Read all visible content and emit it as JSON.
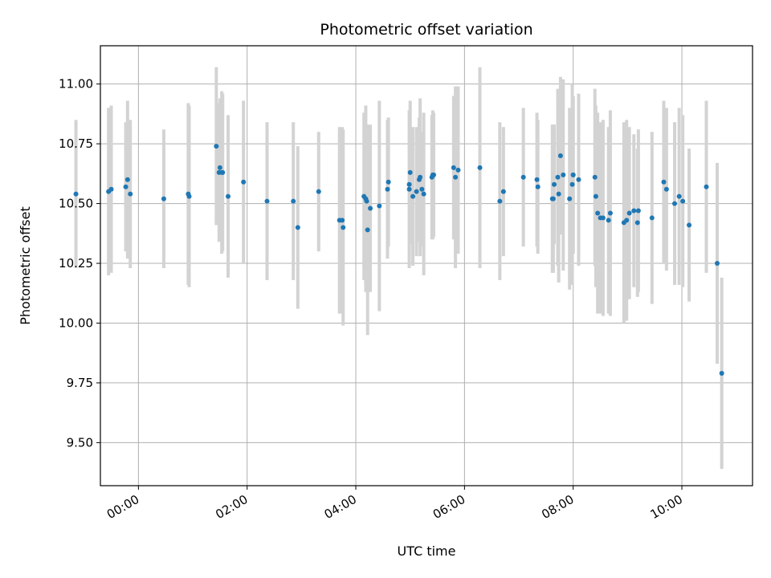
{
  "chart_data": {
    "type": "scatter",
    "title": "Photometric offset variation",
    "xlabel": "UTC time",
    "ylabel": "Photometric offset",
    "x_is_time": true,
    "xlim": [
      "-00:42",
      "11:18"
    ],
    "ylim": [
      9.32,
      11.16
    ],
    "xticks": [
      "00:00",
      "02:00",
      "04:00",
      "06:00",
      "08:00",
      "10:00"
    ],
    "yticks": [
      "9.50",
      "9.75",
      "10.00",
      "10.25",
      "10.50",
      "10.75",
      "11.00"
    ],
    "grid": true,
    "colors": {
      "points": "#1f77b4",
      "error_bars": "#d3d3d3"
    },
    "series": [
      {
        "x": [
          "-01:09",
          "-00:33",
          "-00:30",
          "-00:14",
          "-00:12",
          "-00:09",
          "00:28",
          "00:55",
          "00:56",
          "01:26",
          "01:29",
          "01:30",
          "01:32",
          "01:33",
          "01:39",
          "01:56",
          "02:22",
          "02:51",
          "02:56",
          "03:19",
          "03:42",
          "03:45",
          "03:46",
          "04:09",
          "04:11",
          "04:12",
          "04:13",
          "04:16",
          "04:26",
          "04:35",
          "04:36",
          "04:59",
          "04:59",
          "05:00",
          "05:03",
          "05:07",
          "05:10",
          "05:11",
          "05:13",
          "05:15",
          "05:24",
          "05:25",
          "05:26",
          "05:48",
          "05:50",
          "05:53",
          "06:17",
          "06:39",
          "06:43",
          "07:05",
          "07:20",
          "07:21",
          "07:37",
          "07:38",
          "07:39",
          "07:43",
          "07:44",
          "07:46",
          "07:49",
          "07:56",
          "07:59",
          "08:00",
          "08:00",
          "08:06",
          "08:24",
          "08:25",
          "08:27",
          "08:30",
          "08:33",
          "08:39",
          "08:41",
          "08:56",
          "08:59",
          "09:02",
          "09:07",
          "09:11",
          "09:12",
          "09:27",
          "09:40",
          "09:43",
          "09:52",
          "09:57",
          "10:01",
          "10:08",
          "10:27",
          "10:39",
          "10:44"
        ],
        "y": [
          10.54,
          10.55,
          10.56,
          10.57,
          10.6,
          10.54,
          10.52,
          10.54,
          10.53,
          10.74,
          10.63,
          10.65,
          10.63,
          10.63,
          10.53,
          10.59,
          10.51,
          10.51,
          10.4,
          10.55,
          10.43,
          10.43,
          10.4,
          10.53,
          10.52,
          10.51,
          10.39,
          10.48,
          10.49,
          10.56,
          10.59,
          10.58,
          10.56,
          10.63,
          10.53,
          10.55,
          10.6,
          10.61,
          10.56,
          10.54,
          10.61,
          10.62,
          10.62,
          10.65,
          10.61,
          10.64,
          10.65,
          10.51,
          10.55,
          10.61,
          10.6,
          10.57,
          10.52,
          10.52,
          10.58,
          10.61,
          10.54,
          10.7,
          10.62,
          10.52,
          10.58,
          10.62,
          10.62,
          10.6,
          10.61,
          10.53,
          10.46,
          10.44,
          10.44,
          10.43,
          10.46,
          10.42,
          10.43,
          10.46,
          10.47,
          10.42,
          10.47,
          10.44,
          10.59,
          10.56,
          10.5,
          10.53,
          10.51,
          10.41,
          10.57,
          10.25,
          9.79
        ],
        "err": [
          0.31,
          0.35,
          0.35,
          0.27,
          0.33,
          0.31,
          0.29,
          0.38,
          0.38,
          0.33,
          0.29,
          0.29,
          0.34,
          0.33,
          0.34,
          0.34,
          0.33,
          0.33,
          0.34,
          0.25,
          0.39,
          0.39,
          0.41,
          0.35,
          0.39,
          0.32,
          0.44,
          0.35,
          0.44,
          0.29,
          0.27,
          0.31,
          0.33,
          0.3,
          0.29,
          0.27,
          0.26,
          0.33,
          0.24,
          0.34,
          0.26,
          0.27,
          0.26,
          0.3,
          0.38,
          0.35,
          0.42,
          0.33,
          0.27,
          0.29,
          0.28,
          0.28,
          0.31,
          0.31,
          0.25,
          0.37,
          0.37,
          0.33,
          0.4,
          0.38,
          0.42,
          0.33,
          0.32,
          0.36,
          0.37,
          0.38,
          0.42,
          0.4,
          0.41,
          0.39,
          0.43,
          0.42,
          0.42,
          0.36,
          0.32,
          0.31,
          0.34,
          0.36,
          0.34,
          0.34,
          0.34,
          0.37,
          0.36,
          0.32,
          0.36,
          0.42,
          0.4
        ]
      }
    ]
  }
}
